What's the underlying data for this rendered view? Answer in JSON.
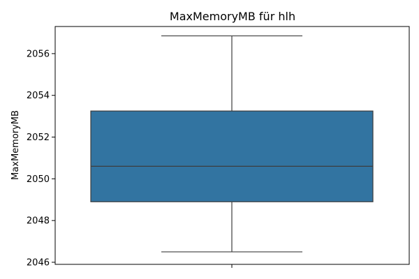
{
  "chart_data": {
    "type": "box",
    "title": "MaxMemoryMB für hlh",
    "xlabel": "",
    "ylabel": "MaxMemoryMB",
    "ylim": [
      2045.9,
      2057.3
    ],
    "yticks": [
      2046,
      2048,
      2050,
      2052,
      2054,
      2056
    ],
    "ytick_labels": [
      "2046",
      "2048",
      "2050",
      "2052",
      "2054",
      "2056"
    ],
    "box": {
      "whisker_low": 2046.5,
      "q1": 2048.9,
      "median": 2050.6,
      "q3": 2053.25,
      "whisker_high": 2056.85
    },
    "box_color": "#3274a1",
    "line_color": "#3d3d3d"
  }
}
